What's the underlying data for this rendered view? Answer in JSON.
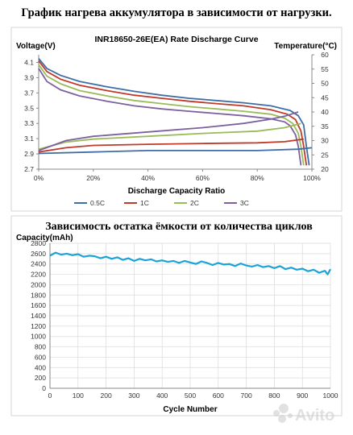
{
  "page": {
    "top_heading": "График нагрева аккумулятора в зависимости от нагрузки.",
    "bottom_heading": "Зависимость остатка ёмкости от количества циклов",
    "watermark": "Avito"
  },
  "chart_data": [
    {
      "type": "line",
      "title": "INR18650-26E(EA) Rate Discharge Curve",
      "xlabel": "Discharge Capacity Ratio",
      "ylabel": "Voltage(V)",
      "y2label": "Temperature(°C)",
      "xlim": [
        0,
        1
      ],
      "ylim": [
        2.7,
        4.2
      ],
      "y2lim": [
        20,
        60
      ],
      "x_ticks": [
        "0%",
        "20%",
        "40%",
        "60%",
        "80%",
        "100%"
      ],
      "y_ticks": [
        "4.1",
        "3.9",
        "3.7",
        "3.5",
        "3.3",
        "3.1",
        "2.9",
        "2.7"
      ],
      "y2_ticks": [
        "60",
        "55",
        "50",
        "45",
        "40",
        "35",
        "30",
        "25",
        "20"
      ],
      "legend": "bottom",
      "grid": false,
      "series": [
        {
          "name": "0.5C",
          "color": "#3f6ea6",
          "axis": "voltage",
          "x": [
            0,
            0.03,
            0.08,
            0.15,
            0.25,
            0.35,
            0.45,
            0.55,
            0.65,
            0.75,
            0.85,
            0.92,
            0.95,
            0.97,
            0.98,
            0.99
          ],
          "y": [
            4.15,
            4.02,
            3.93,
            3.85,
            3.78,
            3.72,
            3.67,
            3.63,
            3.6,
            3.57,
            3.53,
            3.47,
            3.4,
            3.28,
            3.0,
            2.75
          ]
        },
        {
          "name": "1C",
          "color": "#c0392b",
          "axis": "voltage",
          "x": [
            0,
            0.03,
            0.08,
            0.15,
            0.25,
            0.35,
            0.45,
            0.55,
            0.65,
            0.75,
            0.85,
            0.91,
            0.94,
            0.96,
            0.97,
            0.98
          ],
          "y": [
            4.12,
            3.98,
            3.88,
            3.8,
            3.73,
            3.67,
            3.63,
            3.59,
            3.56,
            3.53,
            3.48,
            3.42,
            3.35,
            3.2,
            3.0,
            2.75
          ]
        },
        {
          "name": "2C",
          "color": "#9bbb59",
          "axis": "voltage",
          "x": [
            0,
            0.03,
            0.08,
            0.15,
            0.25,
            0.35,
            0.45,
            0.55,
            0.65,
            0.75,
            0.85,
            0.9,
            0.93,
            0.95,
            0.96,
            0.97
          ],
          "y": [
            4.07,
            3.92,
            3.82,
            3.73,
            3.66,
            3.6,
            3.56,
            3.52,
            3.49,
            3.46,
            3.42,
            3.37,
            3.3,
            3.17,
            3.0,
            2.75
          ]
        },
        {
          "name": "3C",
          "color": "#7d60a0",
          "axis": "voltage",
          "x": [
            0,
            0.03,
            0.08,
            0.15,
            0.25,
            0.35,
            0.45,
            0.55,
            0.65,
            0.75,
            0.85,
            0.9,
            0.92,
            0.94,
            0.95,
            0.96
          ],
          "y": [
            4.02,
            3.85,
            3.74,
            3.66,
            3.59,
            3.53,
            3.49,
            3.46,
            3.43,
            3.4,
            3.36,
            3.32,
            3.27,
            3.15,
            3.0,
            2.75
          ]
        },
        {
          "name": "0.5C",
          "color": "#3f6ea6",
          "axis": "temperature",
          "show_in_legend": false,
          "x": [
            0,
            0.2,
            0.4,
            0.6,
            0.8,
            0.95,
            1.0
          ],
          "y": [
            25.5,
            26,
            26.5,
            26.5,
            26.5,
            27,
            27.5
          ]
        },
        {
          "name": "1C",
          "color": "#c0392b",
          "axis": "temperature",
          "show_in_legend": false,
          "x": [
            0,
            0.1,
            0.2,
            0.4,
            0.6,
            0.8,
            0.9,
            0.97
          ],
          "y": [
            26,
            27.5,
            28.3,
            28.7,
            29,
            29.2,
            29.6,
            30.5
          ]
        },
        {
          "name": "2C",
          "color": "#9bbb59",
          "axis": "temperature",
          "show_in_legend": false,
          "x": [
            0,
            0.1,
            0.2,
            0.4,
            0.6,
            0.8,
            0.9,
            0.96
          ],
          "y": [
            27,
            29.5,
            30.5,
            31.5,
            32.5,
            33.3,
            34.5,
            36
          ]
        },
        {
          "name": "3C",
          "color": "#7d60a0",
          "axis": "temperature",
          "show_in_legend": false,
          "x": [
            0,
            0.1,
            0.2,
            0.4,
            0.6,
            0.75,
            0.85,
            0.9,
            0.95
          ],
          "y": [
            26.5,
            30,
            31.5,
            33,
            34.5,
            36,
            37.5,
            38.5,
            40
          ]
        }
      ]
    },
    {
      "type": "line",
      "ylabel": "Capacity(mAh)",
      "xlabel": "Cycle Number",
      "xlim": [
        0,
        1000
      ],
      "ylim": [
        0,
        2800
      ],
      "x_ticks": [
        "0",
        "100",
        "200",
        "300",
        "400",
        "500",
        "600",
        "700",
        "800",
        "900",
        "1000"
      ],
      "y_ticks": [
        "2800",
        "2600",
        "2400",
        "2200",
        "2000",
        "1800",
        "1600",
        "1400",
        "1200",
        "1000",
        "800",
        "600",
        "400",
        "200",
        "0"
      ],
      "grid": true,
      "series": [
        {
          "name": "",
          "color": "#1aa3d9",
          "x": [
            0,
            20,
            40,
            60,
            80,
            100,
            120,
            140,
            160,
            180,
            200,
            220,
            240,
            260,
            280,
            300,
            320,
            340,
            360,
            380,
            400,
            420,
            440,
            460,
            480,
            500,
            520,
            540,
            560,
            580,
            600,
            620,
            640,
            660,
            680,
            700,
            720,
            740,
            760,
            780,
            800,
            820,
            840,
            860,
            880,
            900,
            920,
            940,
            960,
            980,
            990,
            1000
          ],
          "y": [
            2560,
            2620,
            2580,
            2600,
            2570,
            2590,
            2540,
            2560,
            2550,
            2510,
            2540,
            2500,
            2530,
            2480,
            2510,
            2460,
            2500,
            2470,
            2490,
            2450,
            2470,
            2440,
            2460,
            2420,
            2460,
            2430,
            2400,
            2450,
            2420,
            2380,
            2420,
            2390,
            2400,
            2360,
            2410,
            2370,
            2350,
            2380,
            2340,
            2360,
            2320,
            2360,
            2300,
            2330,
            2290,
            2310,
            2260,
            2290,
            2230,
            2270,
            2200,
            2300
          ]
        }
      ]
    }
  ]
}
